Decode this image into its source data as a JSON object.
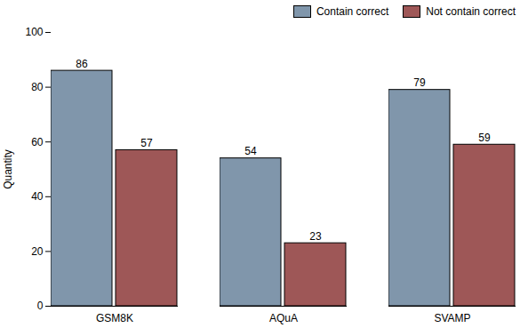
{
  "chart_data": {
    "type": "bar",
    "categories": [
      "GSM8K",
      "AQuA",
      "SVAMP"
    ],
    "series": [
      {
        "name": "Contain correct",
        "color": "#8096ab",
        "values": [
          86,
          54,
          79
        ]
      },
      {
        "name": "Not contain correct",
        "color": "#9e5757",
        "values": [
          57,
          23,
          59
        ]
      }
    ],
    "ylabel": "Quantity",
    "ylim": [
      0,
      100
    ],
    "yticks": [
      0,
      20,
      40,
      60,
      80,
      100
    ],
    "grid": false,
    "legend": "upper right",
    "data_labels": true
  }
}
